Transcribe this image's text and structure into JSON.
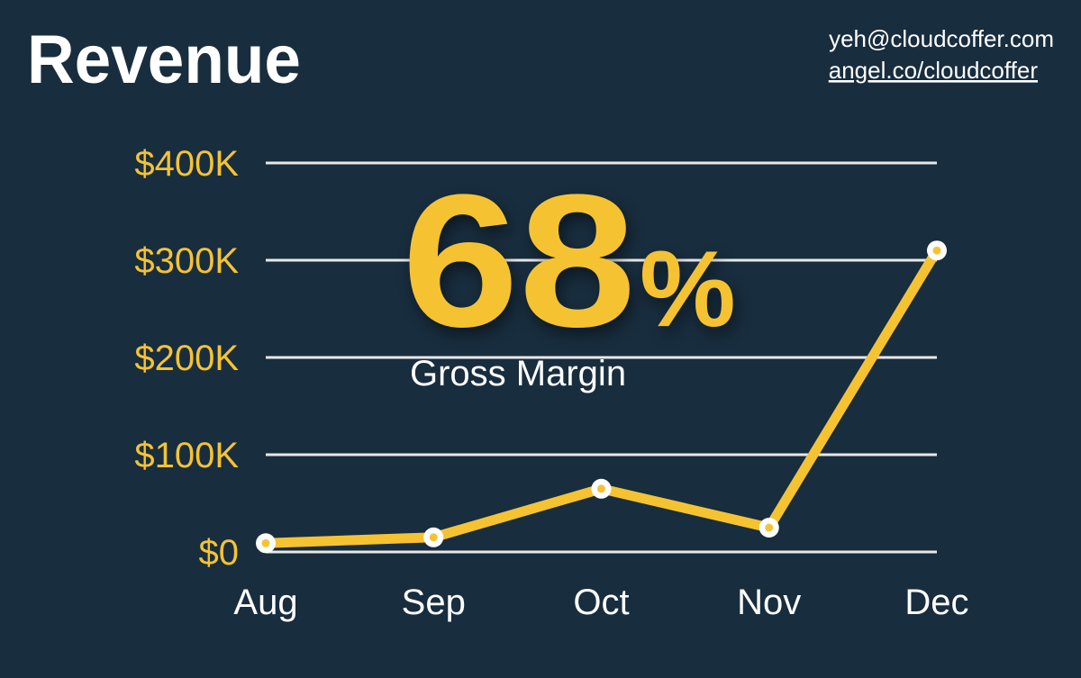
{
  "chart_data": {
    "type": "line",
    "title": "Revenue",
    "contact": [
      "yeh@cloudcoffer.com",
      "angel.co/cloudcoffer"
    ],
    "headline": "68%",
    "headline_caption": "Gross Margin",
    "categories": [
      "Aug",
      "Sep",
      "Oct",
      "Nov",
      "Dec"
    ],
    "series": [
      {
        "name": "Revenue",
        "color": "#f5c332",
        "values": [
          9000,
          15000,
          65000,
          25000,
          310000
        ]
      }
    ],
    "ylim": [
      0,
      400000
    ],
    "yticks": [
      {
        "value": 0,
        "label": "$0"
      },
      {
        "value": 100000,
        "label": "$100K"
      },
      {
        "value": 200000,
        "label": "$200K"
      },
      {
        "value": 300000,
        "label": "$300K"
      },
      {
        "value": 400000,
        "label": "$400K"
      }
    ],
    "grid": true
  }
}
